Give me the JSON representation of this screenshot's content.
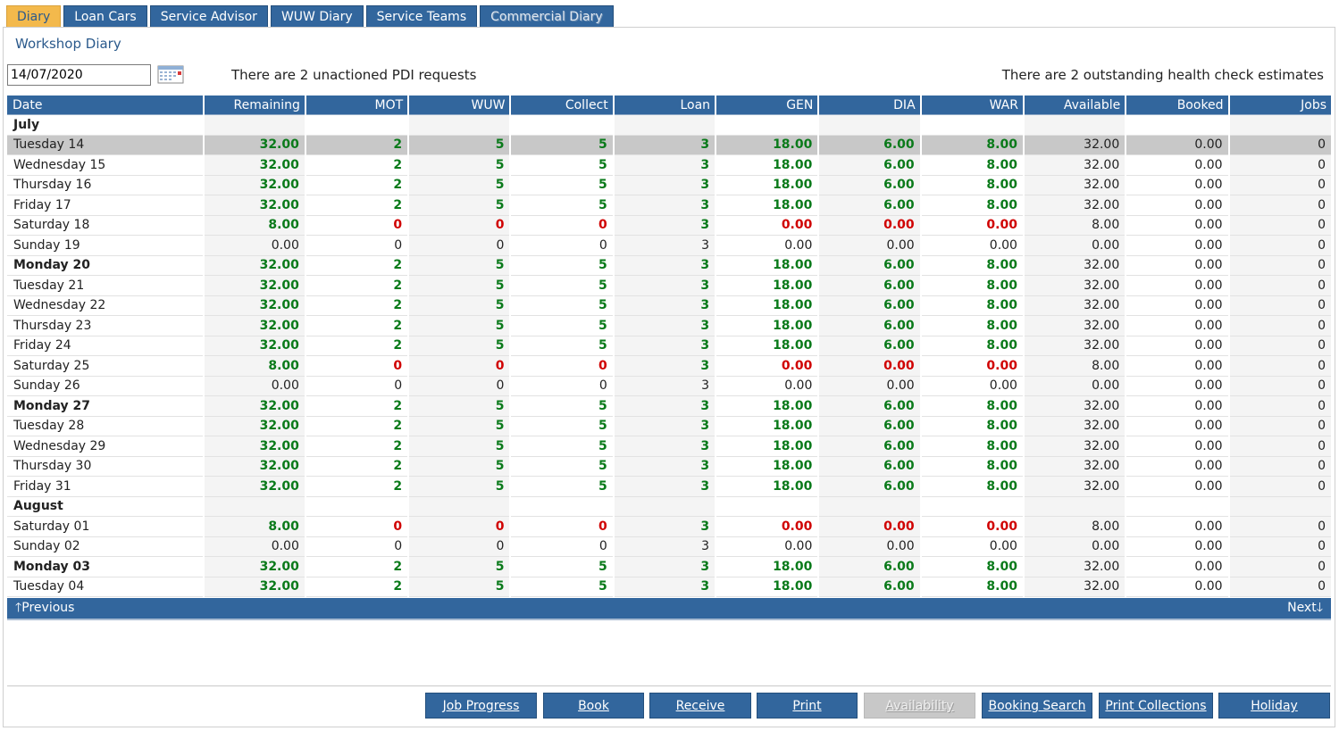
{
  "tabs": [
    "Diary",
    "Loan Cars",
    "Service Advisor",
    "WUW Diary",
    "Service Teams",
    "Commercial Diary"
  ],
  "title": "Workshop Diary",
  "date_value": "14/07/2020",
  "msg_left": "There are 2 unactioned PDI requests",
  "msg_right": "There are 2 outstanding health check estimates",
  "columns": [
    "Date",
    "Remaining",
    "MOT",
    "WUW",
    "Collect",
    "Loan",
    "GEN",
    "DIA",
    "WAR",
    "Available",
    "Booked",
    "Jobs"
  ],
  "rows": [
    {
      "date": "July",
      "month": true
    },
    {
      "date": "Tuesday 14",
      "kind": "weekday",
      "selected": true,
      "vals": [
        "32.00",
        "2",
        "5",
        "5",
        "3",
        "18.00",
        "6.00",
        "8.00",
        "32.00",
        "0.00",
        "0"
      ]
    },
    {
      "date": "Wednesday 15",
      "kind": "weekday",
      "vals": [
        "32.00",
        "2",
        "5",
        "5",
        "3",
        "18.00",
        "6.00",
        "8.00",
        "32.00",
        "0.00",
        "0"
      ]
    },
    {
      "date": "Thursday 16",
      "kind": "weekday",
      "vals": [
        "32.00",
        "2",
        "5",
        "5",
        "3",
        "18.00",
        "6.00",
        "8.00",
        "32.00",
        "0.00",
        "0"
      ]
    },
    {
      "date": "Friday 17",
      "kind": "weekday",
      "vals": [
        "32.00",
        "2",
        "5",
        "5",
        "3",
        "18.00",
        "6.00",
        "8.00",
        "32.00",
        "0.00",
        "0"
      ]
    },
    {
      "date": "Saturday 18",
      "kind": "saturday",
      "vals": [
        "8.00",
        "0",
        "0",
        "0",
        "3",
        "0.00",
        "0.00",
        "0.00",
        "8.00",
        "0.00",
        "0"
      ]
    },
    {
      "date": "Sunday 19",
      "kind": "sunday",
      "vals": [
        "0.00",
        "0",
        "0",
        "0",
        "3",
        "0.00",
        "0.00",
        "0.00",
        "0.00",
        "0.00",
        "0"
      ]
    },
    {
      "date": "Monday 20",
      "kind": "weekday",
      "bold": true,
      "vals": [
        "32.00",
        "2",
        "5",
        "5",
        "3",
        "18.00",
        "6.00",
        "8.00",
        "32.00",
        "0.00",
        "0"
      ]
    },
    {
      "date": "Tuesday 21",
      "kind": "weekday",
      "vals": [
        "32.00",
        "2",
        "5",
        "5",
        "3",
        "18.00",
        "6.00",
        "8.00",
        "32.00",
        "0.00",
        "0"
      ]
    },
    {
      "date": "Wednesday 22",
      "kind": "weekday",
      "vals": [
        "32.00",
        "2",
        "5",
        "5",
        "3",
        "18.00",
        "6.00",
        "8.00",
        "32.00",
        "0.00",
        "0"
      ]
    },
    {
      "date": "Thursday 23",
      "kind": "weekday",
      "vals": [
        "32.00",
        "2",
        "5",
        "5",
        "3",
        "18.00",
        "6.00",
        "8.00",
        "32.00",
        "0.00",
        "0"
      ]
    },
    {
      "date": "Friday 24",
      "kind": "weekday",
      "vals": [
        "32.00",
        "2",
        "5",
        "5",
        "3",
        "18.00",
        "6.00",
        "8.00",
        "32.00",
        "0.00",
        "0"
      ]
    },
    {
      "date": "Saturday 25",
      "kind": "saturday",
      "vals": [
        "8.00",
        "0",
        "0",
        "0",
        "3",
        "0.00",
        "0.00",
        "0.00",
        "8.00",
        "0.00",
        "0"
      ]
    },
    {
      "date": "Sunday 26",
      "kind": "sunday",
      "vals": [
        "0.00",
        "0",
        "0",
        "0",
        "3",
        "0.00",
        "0.00",
        "0.00",
        "0.00",
        "0.00",
        "0"
      ]
    },
    {
      "date": "Monday 27",
      "kind": "weekday",
      "bold": true,
      "vals": [
        "32.00",
        "2",
        "5",
        "5",
        "3",
        "18.00",
        "6.00",
        "8.00",
        "32.00",
        "0.00",
        "0"
      ]
    },
    {
      "date": "Tuesday 28",
      "kind": "weekday",
      "vals": [
        "32.00",
        "2",
        "5",
        "5",
        "3",
        "18.00",
        "6.00",
        "8.00",
        "32.00",
        "0.00",
        "0"
      ]
    },
    {
      "date": "Wednesday 29",
      "kind": "weekday",
      "vals": [
        "32.00",
        "2",
        "5",
        "5",
        "3",
        "18.00",
        "6.00",
        "8.00",
        "32.00",
        "0.00",
        "0"
      ]
    },
    {
      "date": "Thursday 30",
      "kind": "weekday",
      "vals": [
        "32.00",
        "2",
        "5",
        "5",
        "3",
        "18.00",
        "6.00",
        "8.00",
        "32.00",
        "0.00",
        "0"
      ]
    },
    {
      "date": "Friday 31",
      "kind": "weekday",
      "vals": [
        "32.00",
        "2",
        "5",
        "5",
        "3",
        "18.00",
        "6.00",
        "8.00",
        "32.00",
        "0.00",
        "0"
      ]
    },
    {
      "date": "August",
      "month": true
    },
    {
      "date": "Saturday 01",
      "kind": "saturday",
      "vals": [
        "8.00",
        "0",
        "0",
        "0",
        "3",
        "0.00",
        "0.00",
        "0.00",
        "8.00",
        "0.00",
        "0"
      ]
    },
    {
      "date": "Sunday 02",
      "kind": "sunday",
      "vals": [
        "0.00",
        "0",
        "0",
        "0",
        "3",
        "0.00",
        "0.00",
        "0.00",
        "0.00",
        "0.00",
        "0"
      ]
    },
    {
      "date": "Monday 03",
      "kind": "weekday",
      "bold": true,
      "vals": [
        "32.00",
        "2",
        "5",
        "5",
        "3",
        "18.00",
        "6.00",
        "8.00",
        "32.00",
        "0.00",
        "0"
      ]
    },
    {
      "date": "Tuesday 04",
      "kind": "weekday",
      "vals": [
        "32.00",
        "2",
        "5",
        "5",
        "3",
        "18.00",
        "6.00",
        "8.00",
        "32.00",
        "0.00",
        "0"
      ]
    }
  ],
  "nav": {
    "previous": "Previous",
    "next": "Next"
  },
  "buttons": [
    "Job Progress",
    "Book",
    "Receive",
    "Print",
    "Availability",
    "Booking Search",
    "Print Collections",
    "Holiday"
  ],
  "colors": {
    "header_blue": "#32669d",
    "tab_active": "#f3b94c",
    "value_green": "#0a7a1a",
    "value_red": "#d00000",
    "selected_row": "#c8c8c8"
  },
  "icons": {
    "calendar": "calendar-icon",
    "previous": "arrow-up-icon",
    "next": "arrow-down-icon"
  }
}
